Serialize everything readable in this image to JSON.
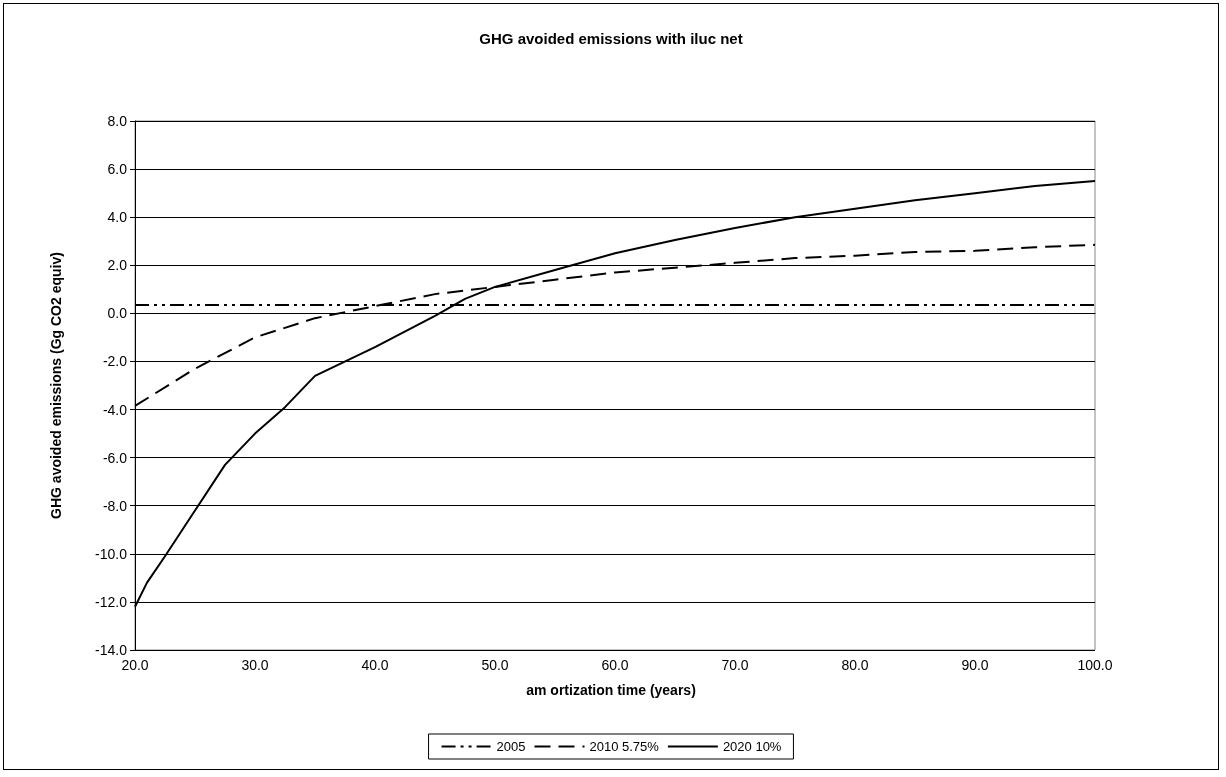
{
  "chart_data": {
    "type": "line",
    "title": "GHG avoided emissions with iluc net",
    "xlabel": "am ortization time (years)",
    "ylabel": "GHG avoided emissions (Gg CO2 equiv)",
    "xlim": [
      20,
      100
    ],
    "xticks": [
      {
        "value": 20,
        "label": "20.0"
      },
      {
        "value": 30,
        "label": "30.0"
      },
      {
        "value": 40,
        "label": "40.0"
      },
      {
        "value": 50,
        "label": "50.0"
      },
      {
        "value": 60,
        "label": "60.0"
      },
      {
        "value": 70,
        "label": "70.0"
      },
      {
        "value": 80,
        "label": "80.0"
      },
      {
        "value": 90,
        "label": "90.0"
      },
      {
        "value": 100,
        "label": "100.0"
      }
    ],
    "ylim": [
      -14,
      8
    ],
    "yticks": [
      {
        "value": -14,
        "label": "-14.0"
      },
      {
        "value": -12,
        "label": "-12.0"
      },
      {
        "value": -10,
        "label": "-10.0"
      },
      {
        "value": -8,
        "label": "-8.0"
      },
      {
        "value": -6,
        "label": "-6.0"
      },
      {
        "value": -4,
        "label": "-4.0"
      },
      {
        "value": -2,
        "label": "-2.0"
      },
      {
        "value": 0,
        "label": "0.0"
      },
      {
        "value": 2,
        "label": "2.0"
      },
      {
        "value": 4,
        "label": "4.0"
      },
      {
        "value": 6,
        "label": "6.0"
      },
      {
        "value": 8,
        "label": "8.0"
      }
    ],
    "grid": "y",
    "legend": "bottom",
    "marker": "none",
    "series": [
      {
        "name": "2005",
        "color": "#000000",
        "line_style": "dotted",
        "x": [
          20,
          30,
          40,
          50,
          60,
          70,
          80,
          90,
          100
        ],
        "values": [
          0.35,
          0.35,
          0.35,
          0.35,
          0.35,
          0.35,
          0.35,
          0.35,
          0.35
        ]
      },
      {
        "name": "2010 5.75%",
        "color": "#000000",
        "line_style": "dashed",
        "x": [
          20,
          25,
          30,
          35,
          40,
          45,
          50,
          55,
          60,
          65,
          70,
          75,
          80,
          85,
          90,
          95,
          100
        ],
        "values": [
          -3.85,
          -2.3,
          -1.0,
          -0.2,
          0.3,
          0.8,
          1.1,
          1.4,
          1.7,
          1.9,
          2.1,
          2.3,
          2.4,
          2.55,
          2.6,
          2.75,
          2.85
        ]
      },
      {
        "name": "2020 10%",
        "color": "#000000",
        "line_style": "solid",
        "x": [
          20,
          21,
          22.5,
          25,
          27.5,
          30,
          32.5,
          35,
          40,
          45,
          47.5,
          50,
          55,
          60,
          65,
          70,
          75,
          80,
          85,
          90,
          95,
          100
        ],
        "values": [
          -12.2,
          -11.2,
          -10.1,
          -8.2,
          -6.3,
          -5.0,
          -3.9,
          -2.6,
          -1.4,
          -0.1,
          0.6,
          1.1,
          1.8,
          2.5,
          3.05,
          3.55,
          4.0,
          4.35,
          4.7,
          5.0,
          5.3,
          5.5
        ]
      }
    ]
  }
}
